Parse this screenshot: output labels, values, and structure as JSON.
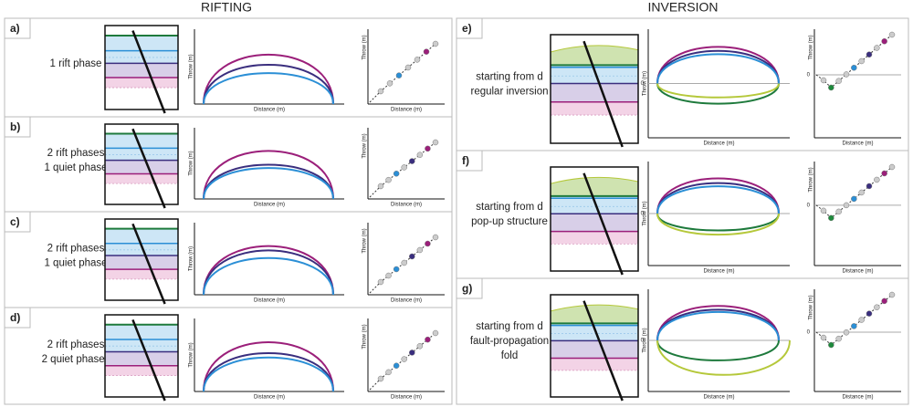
{
  "headers": {
    "rifting": "RIFTING",
    "inversion": "INVERSION"
  },
  "panels": [
    {
      "label": "a)",
      "description": [
        "1 rift phase"
      ],
      "profile": {
        "ylabel": "Throw (m)",
        "xlabel": "Distance (m)"
      },
      "scatter": {
        "ylabel": "Throw (m)",
        "xlabel": "Distance (m)"
      }
    },
    {
      "label": "b)",
      "description": [
        "2 rift phases",
        "1 quiet phase"
      ],
      "profile": {
        "ylabel": "Throw (m)",
        "xlabel": "Distance (m)"
      },
      "scatter": {
        "ylabel": "Throw (m)",
        "xlabel": "Distance (m)"
      }
    },
    {
      "label": "c)",
      "description": [
        "2 rift phases",
        "1 quiet phase"
      ],
      "profile": {
        "ylabel": "Throw (m)",
        "xlabel": "Distance (m)"
      },
      "scatter": {
        "ylabel": "Throw (m)",
        "xlabel": "Distance (m)"
      }
    },
    {
      "label": "d)",
      "description": [
        "2 rift phases",
        "2 quiet phases"
      ],
      "profile": {
        "ylabel": "Throw (m)",
        "xlabel": "Distance (m)"
      },
      "scatter": {
        "ylabel": "Throw (m)",
        "xlabel": "Distance (m)"
      }
    },
    {
      "label": "e)",
      "description": [
        "starting from d",
        "regular inversion"
      ],
      "profile": {
        "ylabel": "Throw (m)",
        "xlabel": "Distance (m)",
        "zero": "0"
      },
      "scatter": {
        "ylabel": "Throw (m)",
        "xlabel": "Distance (m)",
        "zero": "0"
      }
    },
    {
      "label": "f)",
      "description": [
        "starting from d",
        "pop-up structure"
      ],
      "profile": {
        "ylabel": "Throw (m)",
        "xlabel": "Distance (m)",
        "zero": "0"
      },
      "scatter": {
        "ylabel": "Throw (m)",
        "xlabel": "Distance (m)",
        "zero": "0"
      }
    },
    {
      "label": "g)",
      "description": [
        "starting from d",
        "fault-propagation",
        "fold"
      ],
      "profile": {
        "ylabel": "Throw (m)",
        "xlabel": "Distance (m)",
        "zero": "0"
      },
      "scatter": {
        "ylabel": "Throw (m)",
        "xlabel": "Distance (m)",
        "zero": "0"
      }
    }
  ]
}
